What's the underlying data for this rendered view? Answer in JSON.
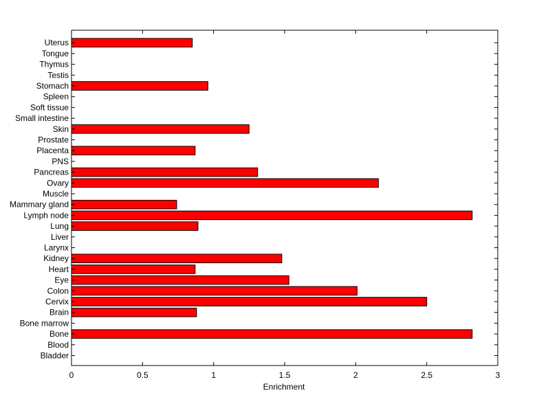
{
  "chart_data": {
    "type": "bar",
    "orientation": "horizontal",
    "title": "",
    "xlabel": "Enrichment",
    "ylabel": "",
    "xlim": [
      0,
      3
    ],
    "xticks": [
      "0",
      "0.5",
      "1",
      "1.5",
      "2",
      "2.5",
      "3"
    ],
    "grid": false,
    "bar_color": "#ff0000",
    "categories": [
      "Bladder",
      "Blood",
      "Bone",
      "Bone marrow",
      "Brain",
      "Cervix",
      "Colon",
      "Eye",
      "Heart",
      "Kidney",
      "Larynx",
      "Liver",
      "Lung",
      "Lymph node",
      "Mammary gland",
      "Muscle",
      "Ovary",
      "Pancreas",
      "PNS",
      "Placenta",
      "Prostate",
      "Skin",
      "Small intestine",
      "Soft tissue",
      "Spleen",
      "Stomach",
      "Testis",
      "Thymus",
      "Tongue",
      "Uterus"
    ],
    "values": [
      0,
      0,
      2.82,
      0,
      0.88,
      2.5,
      2.01,
      1.53,
      0.87,
      1.48,
      0,
      0,
      0.89,
      2.82,
      0.74,
      0,
      2.16,
      1.31,
      0,
      0.87,
      0,
      1.25,
      0,
      0,
      0,
      0.96,
      0,
      0,
      0,
      0.85
    ]
  }
}
